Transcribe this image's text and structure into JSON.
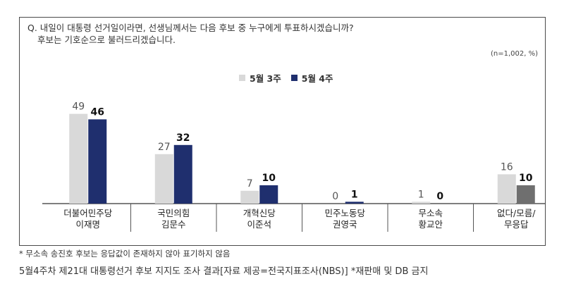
{
  "question": {
    "line1": "Q. 내일이 대통령 선거일이라면, 선생님께서는 다음 후보 중 누구에게 투표하시겠습니까?",
    "line2": "후보는 기호순으로 불러드리겠습니다."
  },
  "unit_note": "(n=1,002, %)",
  "footnote": "* 무소속 송진호 후보는 응답값이 존재하지 않아 표기하지 않음",
  "caption": "5월4주차 제21대 대통령선거 후보 지지도 조사 결과[자료 제공=전국지표조사(NBS)] *재판매 및 DB 금지",
  "colors": {
    "series1": "#d9d9d9",
    "series2": "#1f2f6e",
    "other_series2": "#6f6f6f"
  },
  "chart_data": {
    "type": "bar",
    "categories": [
      [
        "더불어민주당",
        "이재명"
      ],
      [
        "국민의힘",
        "김문수"
      ],
      [
        "개혁신당",
        "이준석"
      ],
      [
        "민주노동당",
        "권영국"
      ],
      [
        "무소속",
        "황교안"
      ],
      [
        "없다/모름/",
        "무응답"
      ]
    ],
    "series": [
      {
        "name": "5월 3주",
        "values": [
          49,
          27,
          7,
          0,
          1,
          16
        ]
      },
      {
        "name": "5월 4주",
        "values": [
          46,
          32,
          10,
          1,
          0,
          10
        ]
      }
    ],
    "ylim": [
      0,
      55
    ],
    "legend": "top-center",
    "grid": false
  }
}
